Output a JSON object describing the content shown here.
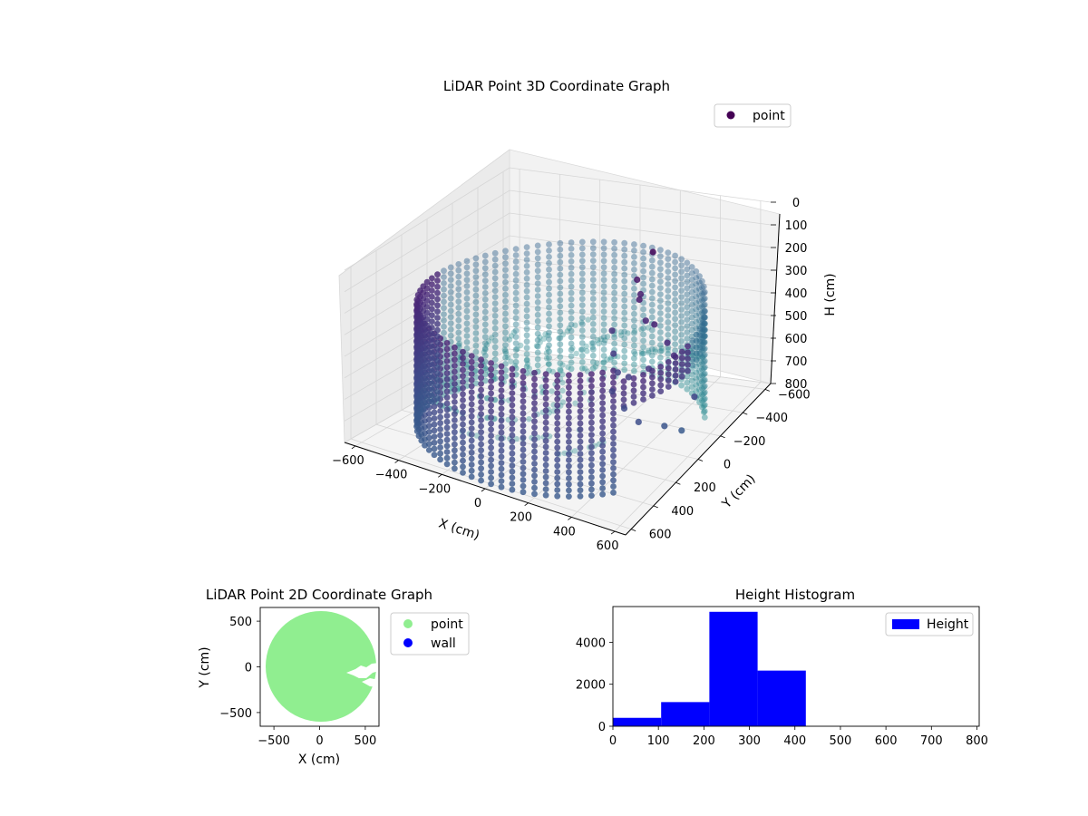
{
  "chart_data": [
    {
      "type": "scatter",
      "title": "LiDAR Point 3D Coordinate Graph",
      "xlabel": "X (cm)",
      "ylabel": "Y (cm)",
      "zlabel": "H (cm)",
      "legend": {
        "entries": [
          "point"
        ],
        "placement": "top-right"
      },
      "x_ticks": [
        "−600",
        "−400",
        "−200",
        "0",
        "200",
        "400",
        "600"
      ],
      "y_ticks": [
        "−600",
        "−400",
        "−200",
        "0",
        "200",
        "400",
        "600"
      ],
      "z_ticks": [
        "0",
        "100",
        "200",
        "300",
        "400",
        "500",
        "600",
        "700",
        "800"
      ],
      "xlim": [
        -650,
        650
      ],
      "ylim": [
        -650,
        650
      ],
      "zlim": [
        0,
        800
      ],
      "z_inverted": true,
      "colormap": "viridis",
      "point_color": "#440154",
      "shape": "cylindrical wall of points, radius ~600 cm, height ~200-800 cm, with an opening toward +X",
      "grid": true
    },
    {
      "type": "scatter",
      "title": "LiDAR Point 2D Coordinate Graph",
      "xlabel": "X (cm)",
      "ylabel": "Y (cm)",
      "x_ticks": [
        "−500",
        "0",
        "500"
      ],
      "y_ticks": [
        "500",
        "0",
        "−500"
      ],
      "xlim": [
        -650,
        650
      ],
      "ylim": [
        -650,
        650
      ],
      "series": [
        {
          "name": "point",
          "color": "#90ee90"
        },
        {
          "name": "wall",
          "color": "#0000ff"
        }
      ],
      "legend": {
        "placement": "outside-right"
      },
      "grid": false
    },
    {
      "type": "bar",
      "title": "Height Histogram",
      "legend": {
        "entries": [
          "Height"
        ],
        "placement": "top-right"
      },
      "color": "#0000ff",
      "bins": [
        {
          "start": 0,
          "end": 106,
          "count": 400
        },
        {
          "start": 106,
          "end": 212,
          "count": 1150
        },
        {
          "start": 212,
          "end": 318,
          "count": 5450
        },
        {
          "start": 318,
          "end": 424,
          "count": 2650
        },
        {
          "start": 424,
          "end": 530,
          "count": 0
        },
        {
          "start": 530,
          "end": 636,
          "count": 0
        },
        {
          "start": 636,
          "end": 742,
          "count": 0
        },
        {
          "start": 742,
          "end": 800,
          "count": 0
        }
      ],
      "x_ticks": [
        "0",
        "100",
        "200",
        "300",
        "400",
        "500",
        "600",
        "700",
        "800"
      ],
      "y_ticks": [
        "0",
        "2000",
        "4000"
      ],
      "xlim": [
        0,
        805
      ],
      "ylim": [
        0,
        5700
      ],
      "grid": false
    }
  ]
}
